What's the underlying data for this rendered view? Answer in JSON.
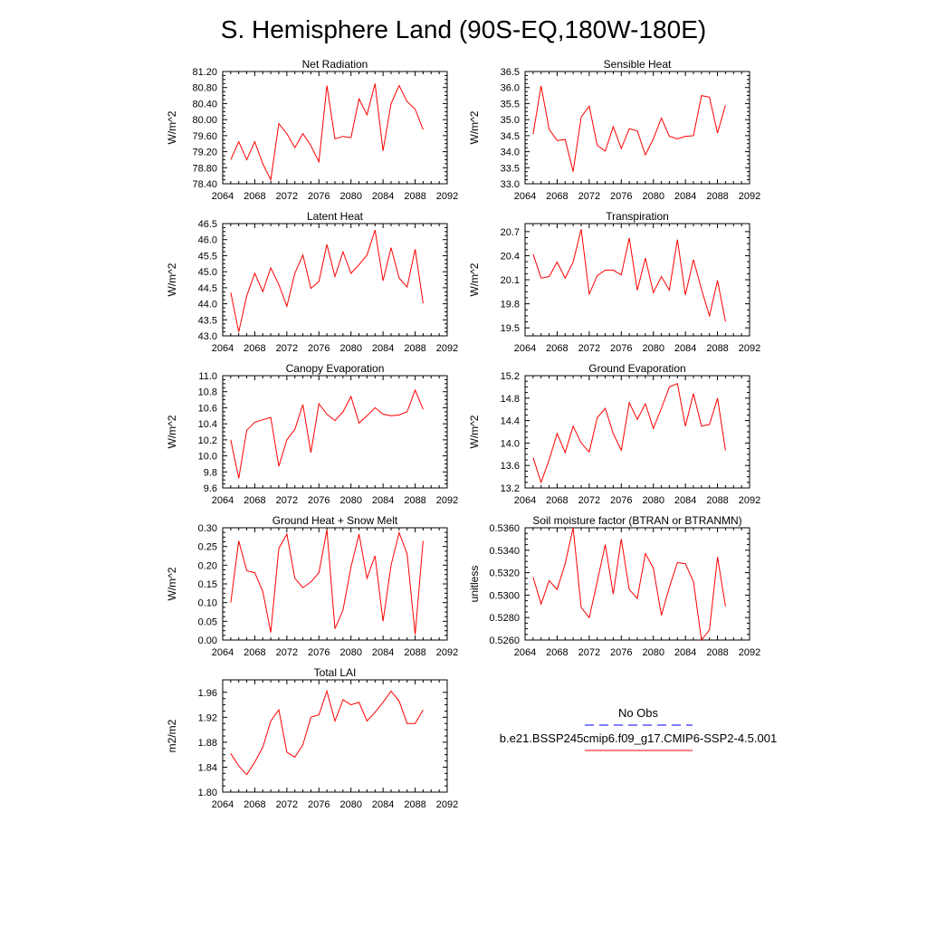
{
  "figure_title": "S. Hemisphere Land (90S-EQ,180W-180E)",
  "colors": {
    "model": "#ff0000",
    "obs": "#0000ff",
    "axis": "#000000"
  },
  "legend": {
    "obs_label": "No Obs",
    "model_label": "b.e21.BSSP245cmip6.f09_g17.CMIP6-SSP2-4.5.001"
  },
  "x_ticks": [
    2064,
    2068,
    2072,
    2076,
    2080,
    2084,
    2088,
    2092
  ],
  "chart_data": [
    {
      "type": "line",
      "title": "Net Radiation",
      "xlabel": "",
      "ylabel": "W/m^2",
      "xlim": [
        2064,
        2092
      ],
      "ylim": [
        78.4,
        81.2
      ],
      "yticks": [
        "78.40",
        "78.80",
        "79.20",
        "79.60",
        "80.00",
        "80.40",
        "80.80",
        "81.20"
      ],
      "series": [
        {
          "color": "#ff0000",
          "x": [
            2065,
            2066,
            2067,
            2068,
            2069,
            2070,
            2071,
            2072,
            2073,
            2074,
            2075,
            2076,
            2077,
            2078,
            2079,
            2080,
            2081,
            2082,
            2083,
            2084,
            2085,
            2086,
            2087,
            2088,
            2089
          ],
          "y": [
            79.0,
            79.45,
            79.0,
            79.45,
            78.9,
            78.5,
            79.9,
            79.65,
            79.3,
            79.65,
            79.35,
            78.95,
            80.85,
            79.52,
            79.58,
            79.55,
            80.52,
            80.12,
            80.9,
            79.22,
            80.4,
            80.85,
            80.45,
            80.26,
            79.75
          ]
        }
      ]
    },
    {
      "type": "line",
      "title": "Sensible Heat",
      "xlabel": "",
      "ylabel": "W/m^2",
      "xlim": [
        2064,
        2092
      ],
      "ylim": [
        33.0,
        36.5
      ],
      "yticks": [
        "33.0",
        "33.5",
        "34.0",
        "34.5",
        "35.0",
        "35.5",
        "36.0",
        "36.5"
      ],
      "series": [
        {
          "color": "#ff0000",
          "x": [
            2065,
            2066,
            2067,
            2068,
            2069,
            2070,
            2071,
            2072,
            2073,
            2074,
            2075,
            2076,
            2077,
            2078,
            2079,
            2080,
            2081,
            2082,
            2083,
            2084,
            2085,
            2086,
            2087,
            2088,
            2089
          ],
          "y": [
            34.55,
            36.05,
            34.7,
            34.35,
            34.38,
            33.38,
            35.08,
            35.42,
            34.2,
            34.02,
            34.78,
            34.1,
            34.72,
            34.65,
            33.9,
            34.4,
            35.05,
            34.48,
            34.4,
            34.48,
            34.5,
            35.75,
            35.7,
            34.58,
            35.45
          ]
        }
      ]
    },
    {
      "type": "line",
      "title": "Latent Heat",
      "xlabel": "",
      "ylabel": "W/m^2",
      "xlim": [
        2064,
        2092
      ],
      "ylim": [
        43.0,
        46.5
      ],
      "yticks": [
        "43.0",
        "43.5",
        "44.0",
        "44.5",
        "45.0",
        "45.5",
        "46.0",
        "46.5"
      ],
      "series": [
        {
          "color": "#ff0000",
          "x": [
            2065,
            2066,
            2067,
            2068,
            2069,
            2070,
            2071,
            2072,
            2073,
            2074,
            2075,
            2076,
            2077,
            2078,
            2079,
            2080,
            2081,
            2082,
            2083,
            2084,
            2085,
            2086,
            2087,
            2088,
            2089
          ],
          "y": [
            44.35,
            43.12,
            44.25,
            44.95,
            44.38,
            45.12,
            44.6,
            43.92,
            44.95,
            45.52,
            44.48,
            44.7,
            45.85,
            44.85,
            45.62,
            44.95,
            45.22,
            45.52,
            46.3,
            44.72,
            45.75,
            44.8,
            44.52,
            45.7,
            44.02
          ]
        }
      ]
    },
    {
      "type": "line",
      "title": "Transpiration",
      "xlabel": "",
      "ylabel": "W/m^2",
      "xlim": [
        2064,
        2092
      ],
      "ylim": [
        19.4,
        20.8
      ],
      "yticks": [
        "19.5",
        "19.8",
        "20.1",
        "20.4",
        "20.7"
      ],
      "ytick_values": [
        19.5,
        19.8,
        20.1,
        20.4,
        20.7
      ],
      "series": [
        {
          "color": "#ff0000",
          "x": [
            2065,
            2066,
            2067,
            2068,
            2069,
            2070,
            2071,
            2072,
            2073,
            2074,
            2075,
            2076,
            2077,
            2078,
            2079,
            2080,
            2081,
            2082,
            2083,
            2084,
            2085,
            2086,
            2087,
            2088,
            2089
          ],
          "y": [
            20.42,
            20.12,
            20.14,
            20.32,
            20.12,
            20.32,
            20.73,
            19.92,
            20.15,
            20.22,
            20.22,
            20.16,
            20.62,
            19.97,
            20.37,
            19.94,
            20.14,
            19.97,
            20.6,
            19.91,
            20.35,
            19.98,
            19.65,
            20.09,
            19.58
          ]
        }
      ]
    },
    {
      "type": "line",
      "title": "Canopy Evaporation",
      "xlabel": "",
      "ylabel": "W/m^2",
      "xlim": [
        2064,
        2092
      ],
      "ylim": [
        9.6,
        11.0
      ],
      "yticks": [
        "9.6",
        "9.8",
        "10.0",
        "10.2",
        "10.4",
        "10.6",
        "10.8",
        "11.0"
      ],
      "series": [
        {
          "color": "#ff0000",
          "x": [
            2065,
            2066,
            2067,
            2068,
            2069,
            2070,
            2071,
            2072,
            2073,
            2074,
            2075,
            2076,
            2077,
            2078,
            2079,
            2080,
            2081,
            2082,
            2083,
            2084,
            2085,
            2086,
            2087,
            2088,
            2089
          ],
          "y": [
            10.2,
            9.72,
            10.32,
            10.42,
            10.45,
            10.48,
            9.87,
            10.2,
            10.33,
            10.64,
            10.04,
            10.65,
            10.52,
            10.44,
            10.55,
            10.74,
            10.41,
            10.5,
            10.6,
            10.52,
            10.5,
            10.51,
            10.55,
            10.82,
            10.58
          ]
        }
      ]
    },
    {
      "type": "line",
      "title": "Ground Evaporation",
      "xlabel": "",
      "ylabel": "W/m^2",
      "xlim": [
        2064,
        2092
      ],
      "ylim": [
        13.2,
        15.2
      ],
      "yticks": [
        "13.2",
        "13.6",
        "14.0",
        "14.4",
        "14.8",
        "15.2"
      ],
      "series": [
        {
          "color": "#ff0000",
          "x": [
            2065,
            2066,
            2067,
            2068,
            2069,
            2070,
            2071,
            2072,
            2073,
            2074,
            2075,
            2076,
            2077,
            2078,
            2079,
            2080,
            2081,
            2082,
            2083,
            2084,
            2085,
            2086,
            2087,
            2088,
            2089
          ],
          "y": [
            13.74,
            13.3,
            13.7,
            14.17,
            13.83,
            14.3,
            14.0,
            13.84,
            14.45,
            14.62,
            14.17,
            13.87,
            14.72,
            14.42,
            14.7,
            14.26,
            14.62,
            15.0,
            15.06,
            14.3,
            14.88,
            14.3,
            14.33,
            14.8,
            13.87
          ]
        }
      ]
    },
    {
      "type": "line",
      "title": "Ground Heat + Snow Melt",
      "xlabel": "",
      "ylabel": "W/m^2",
      "xlim": [
        2064,
        2092
      ],
      "ylim": [
        0.0,
        0.3
      ],
      "yticks": [
        "0.00",
        "0.05",
        "0.10",
        "0.15",
        "0.20",
        "0.25",
        "0.30"
      ],
      "series": [
        {
          "color": "#ff0000",
          "x": [
            2065,
            2066,
            2067,
            2068,
            2069,
            2070,
            2071,
            2072,
            2073,
            2074,
            2075,
            2076,
            2077,
            2078,
            2079,
            2080,
            2081,
            2082,
            2083,
            2084,
            2085,
            2086,
            2087,
            2088,
            2089
          ],
          "y": [
            0.1,
            0.265,
            0.185,
            0.18,
            0.13,
            0.02,
            0.245,
            0.283,
            0.165,
            0.14,
            0.155,
            0.18,
            0.295,
            0.03,
            0.08,
            0.195,
            0.283,
            0.165,
            0.225,
            0.05,
            0.2,
            0.287,
            0.23,
            0.015,
            0.265
          ]
        }
      ]
    },
    {
      "type": "line",
      "title": "Soil moisture factor (BTRAN or BTRANMN)",
      "xlabel": "",
      "ylabel": "unitless",
      "xlim": [
        2064,
        2092
      ],
      "ylim": [
        0.526,
        0.536
      ],
      "yticks": [
        "0.5260",
        "0.5280",
        "0.5300",
        "0.5320",
        "0.5340",
        "0.5360"
      ],
      "series": [
        {
          "color": "#ff0000",
          "x": [
            2065,
            2066,
            2067,
            2068,
            2069,
            2070,
            2071,
            2072,
            2073,
            2074,
            2075,
            2076,
            2077,
            2078,
            2079,
            2080,
            2081,
            2082,
            2083,
            2084,
            2085,
            2086,
            2087,
            2088,
            2089
          ],
          "y": [
            0.5316,
            0.5292,
            0.5313,
            0.5305,
            0.5328,
            0.536,
            0.5289,
            0.528,
            0.5312,
            0.5345,
            0.5301,
            0.535,
            0.5305,
            0.5297,
            0.5337,
            0.5324,
            0.5282,
            0.5307,
            0.5329,
            0.5328,
            0.5312,
            0.526,
            0.5269,
            0.5334,
            0.529
          ]
        }
      ]
    },
    {
      "type": "line",
      "title": "Total LAI",
      "xlabel": "",
      "ylabel": "m2/m2",
      "xlim": [
        2064,
        2092
      ],
      "ylim": [
        1.8,
        1.98
      ],
      "yticks": [
        "1.80",
        "1.84",
        "1.88",
        "1.92",
        "1.96"
      ],
      "ytick_values": [
        1.8,
        1.84,
        1.88,
        1.92,
        1.96
      ],
      "series": [
        {
          "color": "#ff0000",
          "x": [
            2065,
            2066,
            2067,
            2068,
            2069,
            2070,
            2071,
            2072,
            2073,
            2074,
            2075,
            2076,
            2077,
            2078,
            2079,
            2080,
            2081,
            2082,
            2083,
            2084,
            2085,
            2086,
            2087,
            2088,
            2089
          ],
          "y": [
            1.862,
            1.842,
            1.828,
            1.848,
            1.872,
            1.914,
            1.932,
            1.864,
            1.856,
            1.876,
            1.92,
            1.924,
            1.962,
            1.914,
            1.948,
            1.94,
            1.944,
            1.914,
            1.928,
            1.944,
            1.962,
            1.946,
            1.91,
            1.91,
            1.932
          ]
        }
      ]
    }
  ]
}
